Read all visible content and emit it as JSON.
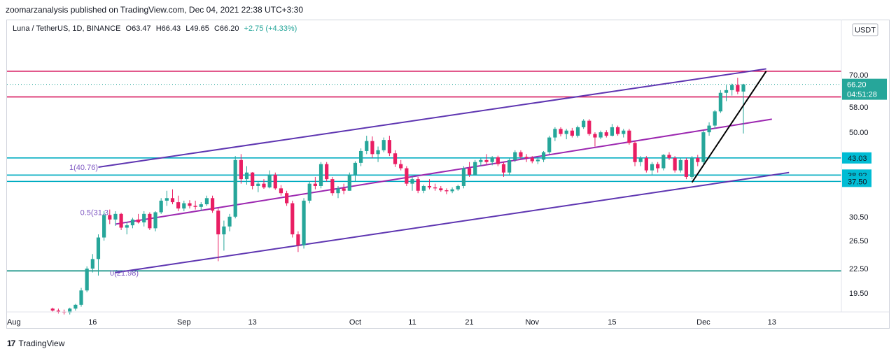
{
  "header": {
    "text": "zoomarzanalysis published on TradingView.com, Dec 04, 2021 22:38 UTC+3:30"
  },
  "legend": {
    "symbol": "Luna / TetherUS, 1D, BINANCE",
    "open": "O63.47",
    "high": "H66.43",
    "low": "L49.65",
    "close": "C66.20",
    "change": "+2.75 (+4.33%)"
  },
  "footer": {
    "brand": "TradingView",
    "logo": "17"
  },
  "chart_data": {
    "type": "candlestick",
    "title": "Luna / TetherUS, 1D, BINANCE",
    "currency": "USDT",
    "scale": "log",
    "y_ticks": [
      "70.00",
      "58.00",
      "50.00",
      "30.50",
      "26.50",
      "22.50",
      "19.50"
    ],
    "x_ticks": [
      "Aug",
      "16",
      "Sep",
      "13",
      "Oct",
      "11",
      "21",
      "Nov",
      "15",
      "Dec",
      "13"
    ],
    "last_price": {
      "value": "66.20",
      "countdown": "04:51:28"
    },
    "price_labels": [
      "43.03",
      "38.92",
      "37.50"
    ],
    "fib_labels": [
      {
        "text": "1(40.76)",
        "value": 40.76
      },
      {
        "text": "0.5(31.3",
        "value": 31.3
      },
      {
        "text": "0(21.98)",
        "value": 21.98
      }
    ],
    "levels": [
      {
        "value": 71.5,
        "color": "#d81b60"
      },
      {
        "value": 61.5,
        "color": "#d81b60"
      },
      {
        "value": 43.03,
        "color": "#00acc1"
      },
      {
        "value": 38.92,
        "color": "#00acc1"
      },
      {
        "value": 37.5,
        "color": "#00acc1"
      },
      {
        "value": 22.2,
        "color": "#00897b"
      }
    ],
    "channel": [
      {
        "from": [
          "2021-08-17",
          40.76
        ],
        "to": [
          "2021-12-12",
          72.5
        ],
        "color": "#5e35b1"
      },
      {
        "from": [
          "2021-08-20",
          29.2
        ],
        "to": [
          "2021-12-13",
          54.0
        ],
        "color": "#9c27b0"
      },
      {
        "from": [
          "2021-08-20",
          21.98
        ],
        "to": [
          "2021-12-16",
          39.5
        ],
        "color": "#5e35b1"
      }
    ],
    "trendline": {
      "from": [
        "2021-11-29",
        37.3
      ],
      "to": [
        "2021-12-12",
        71.5
      ],
      "color": "#000000"
    },
    "candles": [
      [
        "2021-08-09",
        17.8,
        17.9,
        17.5,
        17.6
      ],
      [
        "2021-08-10",
        17.6,
        17.8,
        17.3,
        17.5
      ],
      [
        "2021-08-11",
        17.5,
        17.7,
        17.2,
        17.4
      ],
      [
        "2021-08-12",
        17.4,
        17.9,
        17.2,
        17.8
      ],
      [
        "2021-08-13",
        17.8,
        18.3,
        17.6,
        18.2
      ],
      [
        "2021-08-14",
        18.2,
        20.1,
        18.0,
        19.8
      ],
      [
        "2021-08-15",
        19.8,
        22.8,
        19.6,
        22.5
      ],
      [
        "2021-08-16",
        22.5,
        24.5,
        22.0,
        23.8
      ],
      [
        "2021-08-17",
        23.8,
        27.5,
        21.6,
        27.0
      ],
      [
        "2021-08-18",
        27.0,
        31.5,
        26.5,
        30.8
      ],
      [
        "2021-08-19",
        30.8,
        31.8,
        29.2,
        30.0
      ],
      [
        "2021-08-20",
        30.0,
        31.5,
        28.9,
        31.0
      ],
      [
        "2021-08-21",
        31.0,
        31.2,
        28.2,
        28.6
      ],
      [
        "2021-08-22",
        28.6,
        29.6,
        27.5,
        29.0
      ],
      [
        "2021-08-23",
        29.0,
        30.3,
        28.5,
        30.0
      ],
      [
        "2021-08-24",
        30.0,
        31.0,
        29.3,
        29.5
      ],
      [
        "2021-08-25",
        29.5,
        31.5,
        28.8,
        31.0
      ],
      [
        "2021-08-26",
        31.0,
        31.3,
        28.2,
        28.5
      ],
      [
        "2021-08-27",
        28.5,
        31.5,
        28.0,
        31.3
      ],
      [
        "2021-08-28",
        31.3,
        34.0,
        31.0,
        33.5
      ],
      [
        "2021-08-29",
        33.5,
        35.5,
        32.5,
        34.0
      ],
      [
        "2021-08-30",
        34.0,
        35.8,
        32.8,
        33.2
      ],
      [
        "2021-08-31",
        33.2,
        34.5,
        31.5,
        32.0
      ],
      [
        "2021-09-01",
        32.0,
        33.5,
        31.5,
        33.0
      ],
      [
        "2021-09-02",
        33.0,
        33.6,
        32.0,
        32.5
      ],
      [
        "2021-09-03",
        32.5,
        33.5,
        31.8,
        32.3
      ],
      [
        "2021-09-04",
        32.3,
        33.2,
        31.5,
        32.8
      ],
      [
        "2021-09-05",
        32.8,
        34.5,
        32.5,
        34.0
      ],
      [
        "2021-09-06",
        34.0,
        34.5,
        31.2,
        31.6
      ],
      [
        "2021-09-07",
        31.6,
        32.0,
        23.5,
        27.5
      ],
      [
        "2021-09-08",
        27.5,
        29.8,
        25.0,
        28.8
      ],
      [
        "2021-09-09",
        28.8,
        31.0,
        28.0,
        30.5
      ],
      [
        "2021-09-10",
        30.5,
        43.5,
        30.2,
        42.5
      ],
      [
        "2021-09-11",
        42.5,
        44.0,
        37.0,
        38.0
      ],
      [
        "2021-09-12",
        38.0,
        41.0,
        36.8,
        39.5
      ],
      [
        "2021-09-13",
        39.5,
        39.6,
        35.8,
        36.5
      ],
      [
        "2021-09-14",
        36.5,
        37.5,
        35.2,
        37.0
      ],
      [
        "2021-09-15",
        37.0,
        38.0,
        35.9,
        36.2
      ],
      [
        "2021-09-16",
        36.2,
        40.0,
        36.0,
        39.0
      ],
      [
        "2021-09-17",
        39.0,
        39.5,
        35.7,
        36.0
      ],
      [
        "2021-09-18",
        36.0,
        36.7,
        34.5,
        35.0
      ],
      [
        "2021-09-19",
        35.0,
        35.5,
        32.5,
        33.0
      ],
      [
        "2021-09-20",
        33.0,
        33.5,
        27.0,
        27.5
      ],
      [
        "2021-09-21",
        27.5,
        28.0,
        24.8,
        25.8
      ],
      [
        "2021-09-22",
        25.8,
        34.0,
        25.3,
        33.5
      ],
      [
        "2021-09-23",
        33.5,
        37.5,
        33.0,
        37.0
      ],
      [
        "2021-09-24",
        37.0,
        38.5,
        35.8,
        36.5
      ],
      [
        "2021-09-25",
        36.5,
        42.0,
        36.0,
        41.5
      ],
      [
        "2021-09-26",
        41.5,
        42.0,
        37.5,
        38.0
      ],
      [
        "2021-09-27",
        38.0,
        38.5,
        34.5,
        35.0
      ],
      [
        "2021-09-28",
        35.0,
        36.5,
        34.0,
        36.0
      ],
      [
        "2021-09-29",
        36.0,
        37.0,
        34.8,
        35.5
      ],
      [
        "2021-09-30",
        35.5,
        39.5,
        35.5,
        39.0
      ],
      [
        "2021-10-01",
        39.0,
        42.2,
        37.5,
        41.8
      ],
      [
        "2021-10-02",
        41.8,
        45.5,
        41.0,
        44.8
      ],
      [
        "2021-10-03",
        44.8,
        49.0,
        44.0,
        47.5
      ],
      [
        "2021-10-04",
        47.5,
        48.8,
        43.0,
        44.0
      ],
      [
        "2021-10-05",
        44.0,
        46.0,
        42.0,
        45.0
      ],
      [
        "2021-10-06",
        45.0,
        48.5,
        44.5,
        47.8
      ],
      [
        "2021-10-07",
        47.8,
        49.0,
        43.5,
        44.2
      ],
      [
        "2021-10-08",
        44.2,
        45.0,
        40.8,
        41.5
      ],
      [
        "2021-10-09",
        41.5,
        42.5,
        40.0,
        40.5
      ],
      [
        "2021-10-10",
        40.5,
        41.0,
        36.5,
        37.0
      ],
      [
        "2021-10-11",
        37.0,
        38.5,
        35.5,
        38.0
      ],
      [
        "2021-10-12",
        38.0,
        38.5,
        35.0,
        35.5
      ],
      [
        "2021-10-13",
        35.5,
        36.8,
        35.0,
        36.5
      ],
      [
        "2021-10-14",
        36.5,
        38.0,
        35.8,
        36.2
      ],
      [
        "2021-10-15",
        36.2,
        37.0,
        35.5,
        36.0
      ],
      [
        "2021-10-16",
        36.0,
        36.5,
        35.3,
        35.6
      ],
      [
        "2021-10-17",
        35.6,
        36.0,
        34.8,
        35.4
      ],
      [
        "2021-10-18",
        35.4,
        36.2,
        35.0,
        35.8
      ],
      [
        "2021-10-19",
        35.8,
        36.8,
        35.5,
        36.5
      ],
      [
        "2021-10-20",
        36.5,
        41.0,
        36.0,
        40.5
      ],
      [
        "2021-10-21",
        40.5,
        42.0,
        38.5,
        39.0
      ],
      [
        "2021-10-22",
        39.0,
        42.5,
        38.8,
        42.0
      ],
      [
        "2021-10-23",
        42.0,
        43.0,
        41.0,
        42.5
      ],
      [
        "2021-10-24",
        42.5,
        44.0,
        41.5,
        42.0
      ],
      [
        "2021-10-25",
        42.0,
        43.5,
        41.2,
        43.2
      ],
      [
        "2021-10-26",
        43.2,
        43.6,
        41.0,
        41.5
      ],
      [
        "2021-10-27",
        41.5,
        42.0,
        38.5,
        39.5
      ],
      [
        "2021-10-28",
        39.5,
        43.0,
        39.0,
        42.5
      ],
      [
        "2021-10-29",
        42.5,
        45.0,
        42.0,
        44.5
      ],
      [
        "2021-10-30",
        44.5,
        45.0,
        42.8,
        43.3
      ],
      [
        "2021-10-31",
        43.3,
        44.0,
        42.0,
        43.0
      ],
      [
        "2021-11-01",
        43.0,
        43.5,
        41.7,
        42.2
      ],
      [
        "2021-11-02",
        42.2,
        43.0,
        41.5,
        42.6
      ],
      [
        "2021-11-03",
        42.6,
        44.8,
        42.0,
        44.5
      ],
      [
        "2021-11-04",
        44.5,
        49.0,
        44.0,
        48.5
      ],
      [
        "2021-11-05",
        48.5,
        51.5,
        47.5,
        51.0
      ],
      [
        "2021-11-06",
        51.0,
        51.5,
        48.8,
        49.5
      ],
      [
        "2021-11-07",
        49.5,
        51.0,
        48.0,
        50.5
      ],
      [
        "2021-11-08",
        50.5,
        51.3,
        48.5,
        49.0
      ],
      [
        "2021-11-09",
        49.0,
        52.0,
        48.5,
        51.5
      ],
      [
        "2021-11-10",
        51.5,
        54.0,
        51.0,
        53.5
      ],
      [
        "2021-11-11",
        53.5,
        54.0,
        49.0,
        49.5
      ],
      [
        "2021-11-12",
        49.5,
        50.0,
        46.0,
        48.5
      ],
      [
        "2021-11-13",
        48.5,
        50.5,
        48.0,
        50.0
      ],
      [
        "2021-11-14",
        50.0,
        50.6,
        48.5,
        49.0
      ],
      [
        "2021-11-15",
        49.0,
        52.5,
        48.8,
        51.5
      ],
      [
        "2021-11-16",
        51.5,
        52.0,
        49.0,
        49.5
      ],
      [
        "2021-11-17",
        49.5,
        51.0,
        48.5,
        50.5
      ],
      [
        "2021-11-18",
        50.5,
        51.0,
        46.5,
        47.0
      ],
      [
        "2021-11-19",
        47.0,
        47.5,
        41.0,
        42.0
      ],
      [
        "2021-11-20",
        42.0,
        43.5,
        41.0,
        43.0
      ],
      [
        "2021-11-21",
        43.0,
        43.5,
        39.5,
        40.0
      ],
      [
        "2021-11-22",
        40.0,
        42.0,
        39.0,
        41.5
      ],
      [
        "2021-11-23",
        41.5,
        42.0,
        39.5,
        40.5
      ],
      [
        "2021-11-24",
        40.5,
        44.0,
        40.0,
        43.8
      ],
      [
        "2021-11-25",
        43.8,
        44.5,
        42.5,
        43.0
      ],
      [
        "2021-11-26",
        43.0,
        43.5,
        39.5,
        40.0
      ],
      [
        "2021-11-27",
        40.0,
        43.0,
        39.5,
        42.5
      ],
      [
        "2021-11-28",
        42.5,
        43.0,
        38.0,
        38.5
      ],
      [
        "2021-11-29",
        38.5,
        43.5,
        38.0,
        43.0
      ],
      [
        "2021-11-30",
        43.0,
        43.8,
        41.0,
        42.0
      ],
      [
        "2021-12-01",
        42.0,
        50.5,
        41.5,
        50.0
      ],
      [
        "2021-12-02",
        50.0,
        53.0,
        49.0,
        52.0
      ],
      [
        "2021-12-03",
        52.0,
        57.0,
        51.0,
        56.5
      ],
      [
        "2021-12-04",
        56.5,
        64.0,
        56.0,
        63.0
      ],
      [
        "2021-12-05",
        63.0,
        66.0,
        60.0,
        64.0
      ],
      [
        "2021-12-06",
        64.0,
        66.5,
        62.0,
        66.0
      ],
      [
        "2021-12-07",
        66.0,
        68.8,
        62.5,
        63.47
      ],
      [
        "2021-12-08",
        63.47,
        66.43,
        49.65,
        66.2
      ]
    ]
  }
}
